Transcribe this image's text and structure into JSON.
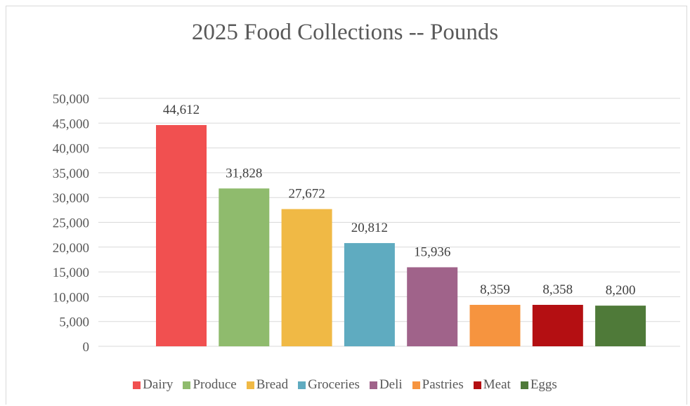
{
  "chart_data": {
    "type": "bar",
    "title": "2025 Food Collections -- Pounds",
    "xlabel": "",
    "ylabel": "",
    "ylim": [
      0,
      50000
    ],
    "yticks": [
      0,
      5000,
      10000,
      15000,
      20000,
      25000,
      30000,
      35000,
      40000,
      45000,
      50000
    ],
    "ytick_labels": [
      "0",
      "5,000",
      "10,000",
      "15,000",
      "20,000",
      "25,000",
      "30,000",
      "35,000",
      "40,000",
      "45,000",
      "50,000"
    ],
    "grid": true,
    "legend_position": "bottom",
    "categories": [
      "Dairy",
      "Produce",
      "Bread",
      "Groceries",
      "Deli",
      "Pastries",
      "Meat",
      "Eggs"
    ],
    "values": [
      44612,
      31828,
      27672,
      20812,
      15936,
      8359,
      8358,
      8200
    ],
    "data_labels": [
      "44,612",
      "31,828",
      "27,672",
      "20,812",
      "15,936",
      "8,359",
      "8,358",
      "8,200"
    ],
    "colors": [
      "#f15050",
      "#8fbb6d",
      "#f0b945",
      "#5fabc0",
      "#a0638a",
      "#f6943f",
      "#b40f12",
      "#4f7a39"
    ]
  }
}
